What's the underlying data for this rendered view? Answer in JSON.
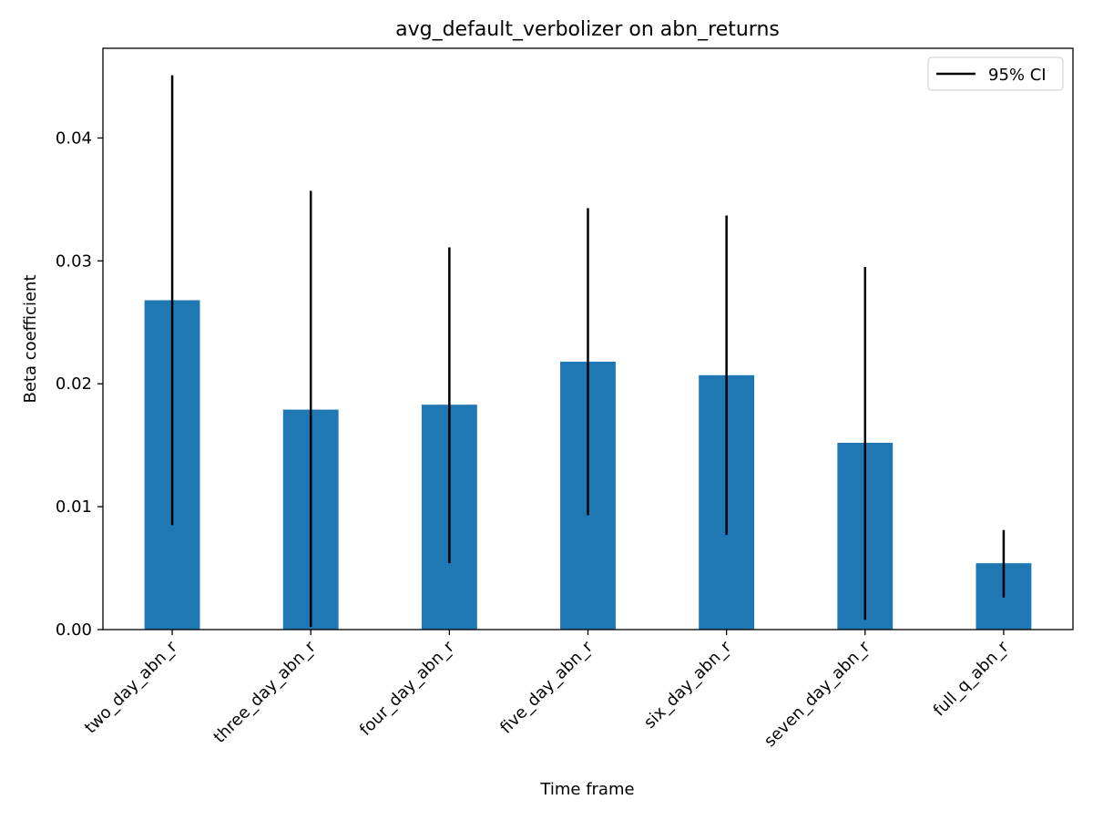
{
  "chart_data": {
    "type": "bar",
    "title": "avg_default_verbolizer on abn_returns",
    "xlabel": "Time frame",
    "ylabel": "Beta coefficient",
    "categories": [
      "two_day_abn_r",
      "three_day_abn_r",
      "four_day_abn_r",
      "five_day_abn_r",
      "six_day_abn_r",
      "seven_day_abn_r",
      "full_q_abn_r"
    ],
    "values": [
      0.0268,
      0.0179,
      0.0183,
      0.0218,
      0.0207,
      0.0152,
      0.0054
    ],
    "ci_lower": [
      0.0085,
      0.0002,
      0.0054,
      0.0093,
      0.0077,
      0.0008,
      0.0026
    ],
    "ci_upper": [
      0.0451,
      0.0357,
      0.0311,
      0.0343,
      0.0337,
      0.0295,
      0.0081
    ],
    "ylim": [
      0,
      0.0473
    ],
    "yticks": [
      "0.00",
      "0.01",
      "0.02",
      "0.03",
      "0.04"
    ],
    "ytick_values": [
      0,
      0.01,
      0.02,
      0.03,
      0.04
    ],
    "legend": {
      "label": "95% CI",
      "position": "top-right"
    },
    "bar_color": "#1f77b4",
    "errorbar_color": "#000000",
    "grid": false
  }
}
